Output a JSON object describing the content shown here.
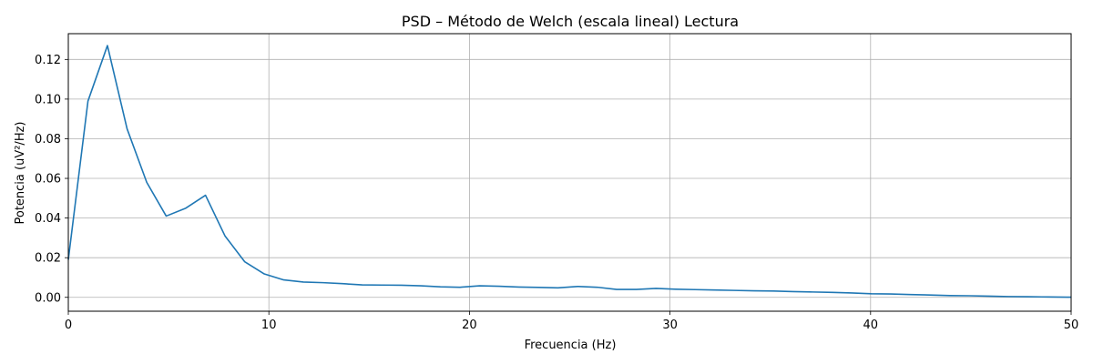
{
  "chart_data": {
    "type": "line",
    "title": "PSD – Método de Welch (escala lineal) Lectura",
    "xlabel": "Frecuencia (Hz)",
    "ylabel": "Potencia (uV²/Hz)",
    "xlim": [
      0,
      50
    ],
    "ylim": [
      -0.007,
      0.133
    ],
    "xticks": [
      0,
      10,
      20,
      30,
      40,
      50
    ],
    "yticks": [
      0.0,
      0.02,
      0.04,
      0.06,
      0.08,
      0.1,
      0.12
    ],
    "ytick_labels": [
      "0.00",
      "0.02",
      "0.04",
      "0.06",
      "0.08",
      "0.10",
      "0.12"
    ],
    "grid": true,
    "legend": "none",
    "series": [
      {
        "color": "#1f77b4",
        "x": [
          0,
          0.98,
          1.95,
          2.93,
          3.91,
          4.88,
          5.86,
          6.84,
          7.81,
          8.79,
          9.77,
          10.74,
          11.72,
          12.7,
          13.67,
          14.65,
          15.63,
          16.6,
          17.58,
          18.55,
          19.53,
          20.51,
          21.48,
          22.46,
          23.44,
          24.41,
          25.39,
          26.37,
          27.34,
          28.32,
          29.3,
          30.27,
          31.25,
          32.23,
          33.2,
          34.18,
          35.16,
          36.13,
          37.11,
          38.09,
          39.06,
          40.04,
          41.02,
          41.99,
          42.97,
          43.95,
          44.92,
          45.9,
          46.88,
          47.85,
          48.83,
          49.8,
          50
        ],
        "y": [
          0.019,
          0.099,
          0.127,
          0.085,
          0.058,
          0.041,
          0.045,
          0.0515,
          0.031,
          0.018,
          0.0118,
          0.0088,
          0.0077,
          0.0074,
          0.0069,
          0.0063,
          0.0062,
          0.0061,
          0.0058,
          0.0053,
          0.0051,
          0.0058,
          0.0056,
          0.0052,
          0.005,
          0.0048,
          0.0055,
          0.0051,
          0.004,
          0.004,
          0.0045,
          0.0041,
          0.0039,
          0.0037,
          0.0035,
          0.0033,
          0.0032,
          0.0029,
          0.0027,
          0.0025,
          0.0022,
          0.0018,
          0.0017,
          0.0014,
          0.0012,
          0.0009,
          0.0008,
          0.0006,
          0.0004,
          0.0003,
          0.0002,
          0.0001,
          0.0001
        ]
      }
    ]
  }
}
